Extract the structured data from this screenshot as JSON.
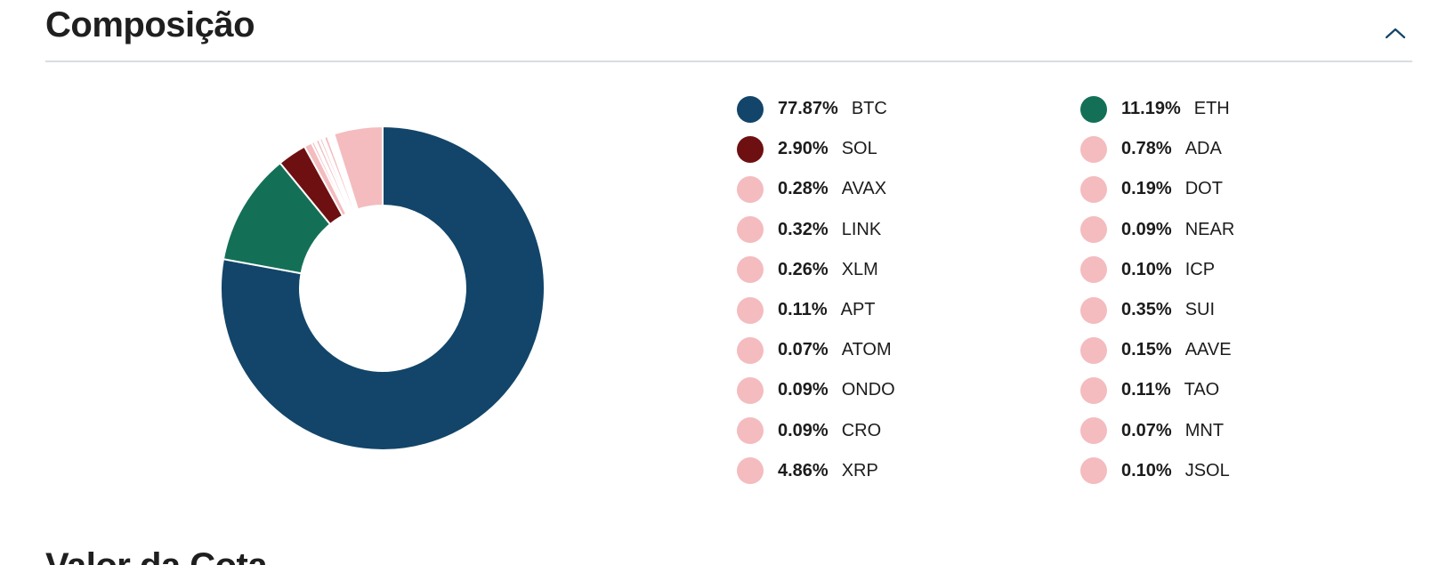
{
  "section": {
    "title": "Composição",
    "collapse_icon": "chevron-up-icon"
  },
  "next_section": {
    "title": "Valor da Cota"
  },
  "colors": {
    "accent": "#124569",
    "divider": "#d9dde3",
    "chevron": "#124569"
  },
  "chart_data": {
    "type": "pie",
    "subtype": "donut",
    "slices": [
      {
        "label": "BTC",
        "pct_label": "77.87%",
        "value": 77.87,
        "color": "#124569"
      },
      {
        "label": "ETH",
        "pct_label": "11.19%",
        "value": 11.19,
        "color": "#137057"
      },
      {
        "label": "SOL",
        "pct_label": "2.90%",
        "value": 2.9,
        "color": "#6e1012"
      },
      {
        "label": "ADA",
        "pct_label": "0.78%",
        "value": 0.78,
        "color": "#f4bcbf"
      },
      {
        "label": "AVAX",
        "pct_label": "0.28%",
        "value": 0.28,
        "color": "#f4bcbf"
      },
      {
        "label": "DOT",
        "pct_label": "0.19%",
        "value": 0.19,
        "color": "#f4bcbf"
      },
      {
        "label": "LINK",
        "pct_label": "0.32%",
        "value": 0.32,
        "color": "#f4bcbf"
      },
      {
        "label": "NEAR",
        "pct_label": "0.09%",
        "value": 0.09,
        "color": "#f4bcbf"
      },
      {
        "label": "XLM",
        "pct_label": "0.26%",
        "value": 0.26,
        "color": "#f4bcbf"
      },
      {
        "label": "ICP",
        "pct_label": "0.10%",
        "value": 0.1,
        "color": "#f4bcbf"
      },
      {
        "label": "APT",
        "pct_label": "0.11%",
        "value": 0.11,
        "color": "#f4bcbf"
      },
      {
        "label": "SUI",
        "pct_label": "0.35%",
        "value": 0.35,
        "color": "#f4bcbf"
      },
      {
        "label": "ATOM",
        "pct_label": "0.07%",
        "value": 0.07,
        "color": "#f4bcbf"
      },
      {
        "label": "AAVE",
        "pct_label": "0.15%",
        "value": 0.15,
        "color": "#f4bcbf"
      },
      {
        "label": "ONDO",
        "pct_label": "0.09%",
        "value": 0.09,
        "color": "#f4bcbf"
      },
      {
        "label": "TAO",
        "pct_label": "0.11%",
        "value": 0.11,
        "color": "#f4bcbf"
      },
      {
        "label": "CRO",
        "pct_label": "0.09%",
        "value": 0.09,
        "color": "#f4bcbf"
      },
      {
        "label": "MNT",
        "pct_label": "0.07%",
        "value": 0.07,
        "color": "#f4bcbf"
      },
      {
        "label": "XRP",
        "pct_label": "4.86%",
        "value": 4.86,
        "color": "#f4bcbf"
      },
      {
        "label": "JSOL",
        "pct_label": "0.10%",
        "value": 0.1,
        "color": "#f4bcbf"
      }
    ],
    "legend_placement": "right",
    "legend_columns": 2
  }
}
